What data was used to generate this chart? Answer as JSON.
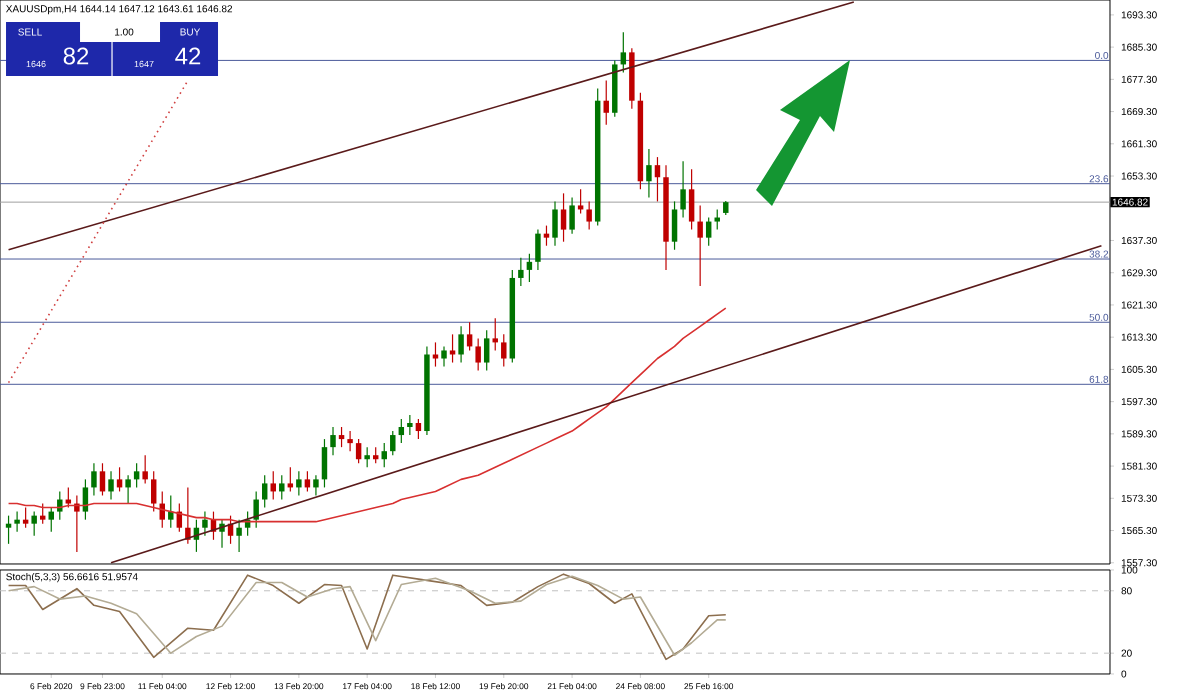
{
  "chart_data": [
    {
      "type": "candlestick",
      "title": "XAUUSDpm,H4 1644.14 1647.12 1643.61 1646.82",
      "categories": [
        null,
        null,
        null,
        null,
        null,
        null,
        null,
        null,
        null,
        null,
        null,
        null,
        null,
        null,
        null,
        null,
        null,
        null,
        null,
        null,
        null,
        null,
        null,
        null,
        null,
        null,
        null,
        null,
        null,
        null,
        null,
        null,
        null,
        null,
        null,
        null,
        null,
        null,
        null,
        null,
        null,
        null,
        null,
        null,
        null,
        null,
        null,
        null,
        null,
        null,
        null,
        null,
        null,
        null,
        null,
        null,
        null,
        null,
        null,
        null,
        null,
        null,
        null,
        null,
        null,
        null,
        null,
        null,
        null,
        null,
        null,
        null,
        null,
        null,
        null,
        null,
        null,
        null,
        null,
        null,
        null,
        null,
        null,
        null,
        null,
        null,
        null,
        null,
        null,
        null,
        null,
        null,
        null,
        null,
        null,
        null,
        null,
        null,
        null,
        null,
        null,
        null,
        null,
        null,
        null,
        null,
        null,
        null,
        null,
        null,
        null,
        null,
        null,
        null,
        null,
        null,
        null,
        null,
        null,
        null,
        null,
        null,
        null,
        null,
        null,
        null,
        null,
        null,
        null
      ],
      "ohlc": [
        [
          1566,
          1569,
          1562,
          1567
        ],
        [
          1567,
          1570,
          1565,
          1568
        ],
        [
          1568,
          1571,
          1566,
          1567
        ],
        [
          1567,
          1570,
          1564,
          1569
        ],
        [
          1569,
          1572,
          1567,
          1568
        ],
        [
          1568,
          1571,
          1565,
          1570
        ],
        [
          1570,
          1575,
          1568,
          1573
        ],
        [
          1573,
          1576,
          1571,
          1572
        ],
        [
          1572,
          1574,
          1560,
          1570
        ],
        [
          1570,
          1578,
          1568,
          1576
        ],
        [
          1576,
          1582,
          1574,
          1580
        ],
        [
          1580,
          1582,
          1574,
          1575
        ],
        [
          1575,
          1580,
          1573,
          1578
        ],
        [
          1578,
          1581,
          1575,
          1576
        ],
        [
          1576,
          1579,
          1572,
          1578
        ],
        [
          1578,
          1582,
          1576,
          1580
        ],
        [
          1580,
          1584,
          1577,
          1578
        ],
        [
          1578,
          1580,
          1570,
          1572
        ],
        [
          1572,
          1575,
          1566,
          1568
        ],
        [
          1568,
          1574,
          1566,
          1570
        ],
        [
          1570,
          1572,
          1565,
          1566
        ],
        [
          1566,
          1576,
          1562,
          1563
        ],
        [
          1563,
          1568,
          1560,
          1566
        ],
        [
          1566,
          1570,
          1564,
          1568
        ],
        [
          1568,
          1570,
          1563,
          1565
        ],
        [
          1565,
          1568,
          1561,
          1567
        ],
        [
          1567,
          1569,
          1562,
          1564
        ],
        [
          1564,
          1568,
          1560,
          1566
        ],
        [
          1566,
          1570,
          1564,
          1568
        ],
        [
          1568,
          1575,
          1566,
          1573
        ],
        [
          1573,
          1579,
          1571,
          1577
        ],
        [
          1577,
          1580,
          1573,
          1575
        ],
        [
          1575,
          1579,
          1573,
          1577
        ],
        [
          1577,
          1581,
          1575,
          1576
        ],
        [
          1576,
          1580,
          1574,
          1578
        ],
        [
          1578,
          1580,
          1575,
          1576
        ],
        [
          1576,
          1579,
          1574,
          1578
        ],
        [
          1578,
          1588,
          1576,
          1586
        ],
        [
          1586,
          1591,
          1584,
          1589
        ],
        [
          1589,
          1591,
          1586,
          1588
        ],
        [
          1588,
          1590,
          1585,
          1587
        ],
        [
          1587,
          1588,
          1582,
          1583
        ],
        [
          1583,
          1586,
          1581,
          1584
        ],
        [
          1584,
          1586,
          1582,
          1583
        ],
        [
          1583,
          1587,
          1581,
          1585
        ],
        [
          1585,
          1590,
          1584,
          1589
        ],
        [
          1589,
          1593,
          1587,
          1591
        ],
        [
          1591,
          1594,
          1589,
          1592
        ],
        [
          1592,
          1593,
          1588,
          1590
        ],
        [
          1590,
          1611,
          1589,
          1609
        ],
        [
          1609,
          1612,
          1606,
          1608
        ],
        [
          1608,
          1611,
          1606,
          1610
        ],
        [
          1610,
          1614,
          1607,
          1609
        ],
        [
          1609,
          1616,
          1607,
          1614
        ],
        [
          1614,
          1617,
          1610,
          1611
        ],
        [
          1611,
          1613,
          1605,
          1607
        ],
        [
          1607,
          1615,
          1605,
          1613
        ],
        [
          1613,
          1618,
          1610,
          1612
        ],
        [
          1612,
          1614,
          1606,
          1608
        ],
        [
          1608,
          1630,
          1607,
          1628
        ],
        [
          1628,
          1633,
          1626,
          1630
        ],
        [
          1630,
          1634,
          1627,
          1632
        ],
        [
          1632,
          1640,
          1630,
          1639
        ],
        [
          1639,
          1641,
          1636,
          1638
        ],
        [
          1638,
          1647,
          1636,
          1645
        ],
        [
          1645,
          1649,
          1637,
          1640
        ],
        [
          1640,
          1648,
          1639,
          1646
        ],
        [
          1646,
          1650,
          1644,
          1645
        ],
        [
          1645,
          1647,
          1640,
          1642
        ],
        [
          1642,
          1675,
          1641,
          1672
        ],
        [
          1672,
          1677,
          1666,
          1669
        ],
        [
          1669,
          1682,
          1668,
          1681
        ],
        [
          1681,
          1689,
          1679,
          1684
        ],
        [
          1684,
          1685,
          1670,
          1672
        ],
        [
          1672,
          1674,
          1650,
          1652
        ],
        [
          1652,
          1660,
          1648,
          1656
        ],
        [
          1656,
          1658,
          1647,
          1653
        ],
        [
          1653,
          1656,
          1630,
          1637
        ],
        [
          1637,
          1647,
          1635,
          1645
        ],
        [
          1645,
          1657,
          1643,
          1650
        ],
        [
          1650,
          1655,
          1640,
          1642
        ],
        [
          1642,
          1646,
          1626,
          1638
        ],
        [
          1638,
          1643,
          1636,
          1642
        ],
        [
          1642,
          1645,
          1640,
          1643
        ],
        [
          1644.14,
          1647.12,
          1643.61,
          1646.82
        ],
        null,
        null,
        null,
        null,
        null,
        null,
        null,
        null,
        null,
        null,
        null,
        null,
        null,
        null,
        null,
        null,
        null,
        null,
        null,
        null,
        null,
        null,
        null,
        null,
        null,
        null,
        null,
        null,
        null,
        null,
        null,
        null,
        null,
        null,
        null,
        null,
        null,
        null,
        null,
        null,
        null,
        null,
        null,
        null
      ],
      "series": [
        {
          "type": "line",
          "color": "#d83030",
          "values": [
            1572,
            1572,
            1571.5,
            1571.5,
            1571,
            1571,
            1571,
            1571.5,
            1571.5,
            1571.5,
            1572,
            1572,
            1572,
            1572,
            1572,
            1572,
            1571.5,
            1571,
            1570.5,
            1570,
            1569.5,
            1569,
            1568.5,
            1568.5,
            1568,
            1568,
            1568,
            1567.5,
            1567.5,
            1567.5,
            1567.5,
            1567.5,
            1567.5,
            1567.5,
            1567.5,
            1567.5,
            1567.5,
            1568,
            1568.5,
            1569,
            1569.5,
            1570,
            1570.5,
            1571,
            1571.5,
            1572,
            1573,
            1573.5,
            1574,
            1574.5,
            1575,
            1576,
            1577,
            1578,
            1578.5,
            1579,
            1580,
            1581,
            1582,
            1583,
            1584,
            1585,
            1586,
            1587,
            1588,
            1589,
            1590,
            1591.5,
            1593,
            1594.5,
            1596,
            1598,
            1600,
            1602,
            1604,
            1606,
            1608,
            1609.5,
            1611,
            1613,
            1614.5,
            1616,
            1617.5,
            1619,
            1620.5,
            null,
            null,
            null,
            null,
            null,
            null,
            null,
            null,
            null,
            null,
            null,
            null,
            null,
            null,
            null,
            null,
            null,
            null,
            null,
            null,
            null,
            null,
            null,
            null,
            null,
            null,
            null,
            null,
            null,
            null,
            null,
            null,
            null,
            null,
            null,
            null,
            null,
            null,
            null,
            null,
            null,
            null,
            null,
            null
          ]
        },
        {
          "type": "line",
          "color": "#5a1a1a",
          "values": [
            1635,
            null,
            null,
            null,
            null,
            null,
            null,
            null,
            null,
            null,
            null,
            null,
            null,
            null,
            null,
            null,
            null,
            null,
            null,
            null,
            null,
            null,
            null,
            null,
            null,
            null,
            null,
            null,
            null,
            null,
            null,
            null,
            null,
            null,
            null,
            null,
            null,
            null,
            null,
            null,
            null,
            null,
            null,
            null,
            null,
            null,
            null,
            null,
            null,
            null,
            null,
            null,
            null,
            null,
            null,
            null,
            null,
            null,
            null,
            null,
            null,
            null,
            null,
            null,
            null,
            null,
            null,
            null,
            null,
            null,
            null,
            null,
            null,
            null,
            null,
            null,
            null,
            null,
            null,
            null,
            null,
            null,
            null,
            null,
            null,
            null,
            null,
            null,
            null,
            null,
            null,
            null,
            null,
            null,
            null,
            null,
            null,
            null,
            null,
            1696.5,
            null,
            null,
            null,
            null,
            null,
            null,
            null,
            null,
            null,
            null,
            null,
            null,
            null,
            null,
            null,
            null,
            null,
            null,
            null,
            null,
            null,
            null,
            null,
            null,
            null,
            null,
            null,
            null,
            null
          ]
        },
        {
          "type": "line",
          "color": "#5a1a1a",
          "values": [
            null,
            null,
            null,
            null,
            null,
            null,
            null,
            null,
            null,
            null,
            null,
            null,
            1557.3,
            null,
            null,
            null,
            null,
            null,
            null,
            null,
            null,
            null,
            null,
            null,
            null,
            null,
            null,
            null,
            null,
            null,
            null,
            null,
            null,
            null,
            null,
            null,
            null,
            null,
            null,
            null,
            null,
            null,
            null,
            null,
            null,
            null,
            null,
            null,
            null,
            null,
            null,
            null,
            null,
            null,
            null,
            null,
            null,
            null,
            null,
            null,
            null,
            null,
            null,
            null,
            null,
            null,
            null,
            null,
            null,
            null,
            null,
            null,
            null,
            null,
            null,
            null,
            null,
            null,
            null,
            null,
            null,
            null,
            null,
            null,
            null,
            null,
            null,
            null,
            null,
            null,
            null,
            null,
            null,
            null,
            null,
            null,
            null,
            null,
            null,
            null,
            null,
            null,
            null,
            null,
            null,
            null,
            null,
            null,
            null,
            null,
            null,
            null,
            null,
            null,
            null,
            null,
            null,
            null,
            null,
            null,
            null,
            null,
            null,
            null,
            null,
            null,
            null,
            null,
            1636
          ]
        },
        {
          "type": "line",
          "color": "#d04040",
          "line_style": "dotted",
          "values": [
            1602,
            null,
            null,
            null,
            null,
            null,
            null,
            null,
            null,
            null,
            null,
            null,
            null,
            null,
            null,
            null,
            null,
            null,
            null,
            null,
            null,
            1677,
            null,
            null,
            null,
            null,
            null,
            null,
            null,
            null,
            null,
            null,
            null,
            null,
            null,
            null,
            null,
            null,
            null,
            null,
            null,
            null,
            null,
            null,
            null,
            null,
            null,
            null,
            null,
            null,
            null,
            null,
            null,
            null,
            null,
            null,
            null,
            null,
            null,
            null,
            null,
            null,
            null,
            null,
            null,
            null,
            null,
            null,
            null,
            null,
            null,
            null,
            null,
            null,
            null,
            null,
            null,
            null,
            null,
            null,
            null,
            null,
            null,
            null,
            null,
            null,
            null,
            null,
            null,
            null,
            null,
            null,
            null,
            null,
            null,
            null,
            null,
            null,
            null,
            null,
            null,
            null,
            null,
            null,
            null,
            null,
            null,
            null,
            null,
            null,
            null,
            null,
            null,
            null,
            null,
            null,
            null,
            null,
            null,
            null,
            null,
            null,
            null,
            null,
            null,
            null,
            null,
            null,
            null
          ]
        }
      ],
      "ylim": [
        1557,
        1697
      ],
      "yticks": [
        {
          "value": 1557.3,
          "label": "1557.30"
        },
        {
          "value": 1565.3,
          "label": "1565.30"
        },
        {
          "value": 1573.3,
          "label": "1573.30"
        },
        {
          "value": 1581.3,
          "label": "1581.30"
        },
        {
          "value": 1589.3,
          "label": "1589.30"
        },
        {
          "value": 1597.3,
          "label": "1597.30"
        },
        {
          "value": 1605.3,
          "label": "1605.30"
        },
        {
          "value": 1613.3,
          "label": "1613.30"
        },
        {
          "value": 1621.3,
          "label": "1621.30"
        },
        {
          "value": 1629.3,
          "label": "1629.30"
        },
        {
          "value": 1637.3,
          "label": "1637.30"
        },
        {
          "value": 1653.3,
          "label": "1653.30"
        },
        {
          "value": 1661.3,
          "label": "1661.30"
        },
        {
          "value": 1669.3,
          "label": "1669.30"
        },
        {
          "value": 1677.3,
          "label": "1677.30"
        },
        {
          "value": 1685.3,
          "label": "1685.30"
        },
        {
          "value": 1693.3,
          "label": "1693.30"
        }
      ],
      "ref_lines": [
        {
          "axis": "y",
          "value": 1682,
          "color": "#4a5a9a"
        },
        {
          "axis": "y",
          "value": 1651.4,
          "color": "#4a5a9a"
        },
        {
          "axis": "y",
          "value": 1646.82,
          "label": "1646.82",
          "color": "#a0a0a0"
        },
        {
          "axis": "y",
          "value": 1632.7,
          "color": "#4a5a9a"
        },
        {
          "axis": "y",
          "value": 1617,
          "color": "#4a5a9a"
        },
        {
          "axis": "y",
          "value": 1601.6,
          "color": "#4a5a9a"
        }
      ],
      "annotations": [
        "SELL",
        "1.00",
        "BUY",
        "1646",
        "82",
        "1647",
        "42",
        {
          "text": "0.0",
          "y": 1682
        },
        {
          "text": "23.6",
          "y": 1651.4
        },
        {
          "text": "38.2",
          "y": 1632.7
        },
        {
          "text": "50.0",
          "y": 1617
        },
        {
          "text": "61.8",
          "y": 1601.6
        }
      ],
      "tick_labels": "y"
    },
    {
      "type": "line",
      "title": "Stoch(5,3,3) 56.6616 51.9574",
      "categories": [
        null,
        null,
        null,
        null,
        null,
        "6 Feb 2020",
        null,
        null,
        null,
        null,
        null,
        "9 Feb 23:00",
        null,
        null,
        null,
        null,
        null,
        null,
        "11 Feb 04:00",
        null,
        null,
        null,
        null,
        null,
        null,
        null,
        "12 Feb 12:00",
        null,
        null,
        null,
        null,
        null,
        null,
        null,
        "13 Feb 20:00",
        null,
        null,
        null,
        null,
        null,
        null,
        null,
        "17 Feb 04:00",
        null,
        null,
        null,
        null,
        null,
        null,
        null,
        "18 Feb 12:00",
        null,
        null,
        null,
        null,
        null,
        null,
        null,
        "19 Feb 20:00",
        null,
        null,
        null,
        null,
        null,
        null,
        null,
        "21 Feb 04:00",
        null,
        null,
        null,
        null,
        null,
        null,
        null,
        "24 Feb 08:00",
        null,
        null,
        null,
        null,
        null,
        null,
        null,
        "25 Feb 16:00",
        null,
        null,
        null,
        null,
        null,
        null,
        null,
        null,
        null,
        null,
        null,
        null,
        null,
        null,
        null,
        null,
        null,
        null,
        null,
        null,
        null,
        null,
        null,
        null,
        null,
        null,
        null,
        null,
        null,
        null,
        null,
        null,
        null,
        null,
        null,
        null,
        null,
        null,
        null,
        null,
        null,
        null,
        null,
        null,
        null,
        null
      ],
      "series": [
        {
          "color": "#8c6e4e",
          "values": [
            85,
            null,
            85,
            null,
            62,
            null,
            null,
            null,
            82,
            null,
            66,
            null,
            null,
            60,
            null,
            null,
            null,
            16,
            null,
            null,
            null,
            44,
            null,
            null,
            42,
            null,
            null,
            null,
            95,
            null,
            null,
            85,
            null,
            null,
            68,
            null,
            null,
            86,
            null,
            85,
            null,
            null,
            24,
            null,
            null,
            95,
            null,
            null,
            null,
            90,
            null,
            null,
            null,
            85,
            null,
            null,
            66,
            null,
            null,
            69,
            null,
            null,
            84,
            null,
            null,
            96,
            null,
            null,
            87,
            null,
            null,
            68,
            null,
            77,
            null,
            null,
            null,
            14,
            null,
            24,
            null,
            null,
            56,
            null,
            57,
            null,
            null,
            null,
            null,
            null,
            null,
            null,
            null,
            null,
            null,
            null,
            null,
            null,
            null,
            null,
            null,
            null,
            null,
            null,
            null,
            null,
            null,
            null,
            null,
            null,
            null,
            null,
            null,
            null,
            null,
            null,
            null,
            null,
            null,
            null,
            null,
            null,
            null,
            null,
            null,
            null,
            null,
            null,
            null
          ]
        },
        {
          "color": "#b3ab94",
          "values": [
            80,
            null,
            null,
            84,
            null,
            null,
            72,
            null,
            null,
            75,
            null,
            null,
            68,
            null,
            null,
            58,
            null,
            null,
            null,
            20,
            null,
            null,
            36,
            null,
            null,
            46,
            null,
            null,
            null,
            88,
            null,
            null,
            88,
            null,
            null,
            74,
            null,
            null,
            82,
            null,
            84,
            null,
            null,
            32,
            null,
            null,
            86,
            null,
            null,
            null,
            92,
            null,
            null,
            null,
            80,
            null,
            null,
            68,
            null,
            null,
            70,
            null,
            null,
            86,
            null,
            null,
            94,
            null,
            null,
            85,
            null,
            null,
            72,
            null,
            74,
            null,
            null,
            null,
            18,
            null,
            30,
            null,
            null,
            52,
            52,
            null,
            null,
            null,
            null,
            null,
            null,
            null,
            null,
            null,
            null,
            null,
            null,
            null,
            null,
            null,
            null,
            null,
            null,
            null,
            null,
            null,
            null,
            null,
            null,
            null,
            null,
            null,
            null,
            null,
            null,
            null,
            null,
            null,
            null,
            null,
            null,
            null,
            null,
            null,
            null,
            null,
            null,
            null,
            null
          ]
        }
      ],
      "ylim": [
        0,
        100
      ],
      "yticks": [
        0,
        20,
        80,
        100
      ],
      "ref_lines": [
        {
          "axis": "y",
          "value": 20,
          "color": "#c0c0c0",
          "line_style": "dashed"
        },
        {
          "axis": "y",
          "value": 80,
          "color": "#c0c0c0",
          "line_style": "dashed"
        }
      ]
    }
  ]
}
